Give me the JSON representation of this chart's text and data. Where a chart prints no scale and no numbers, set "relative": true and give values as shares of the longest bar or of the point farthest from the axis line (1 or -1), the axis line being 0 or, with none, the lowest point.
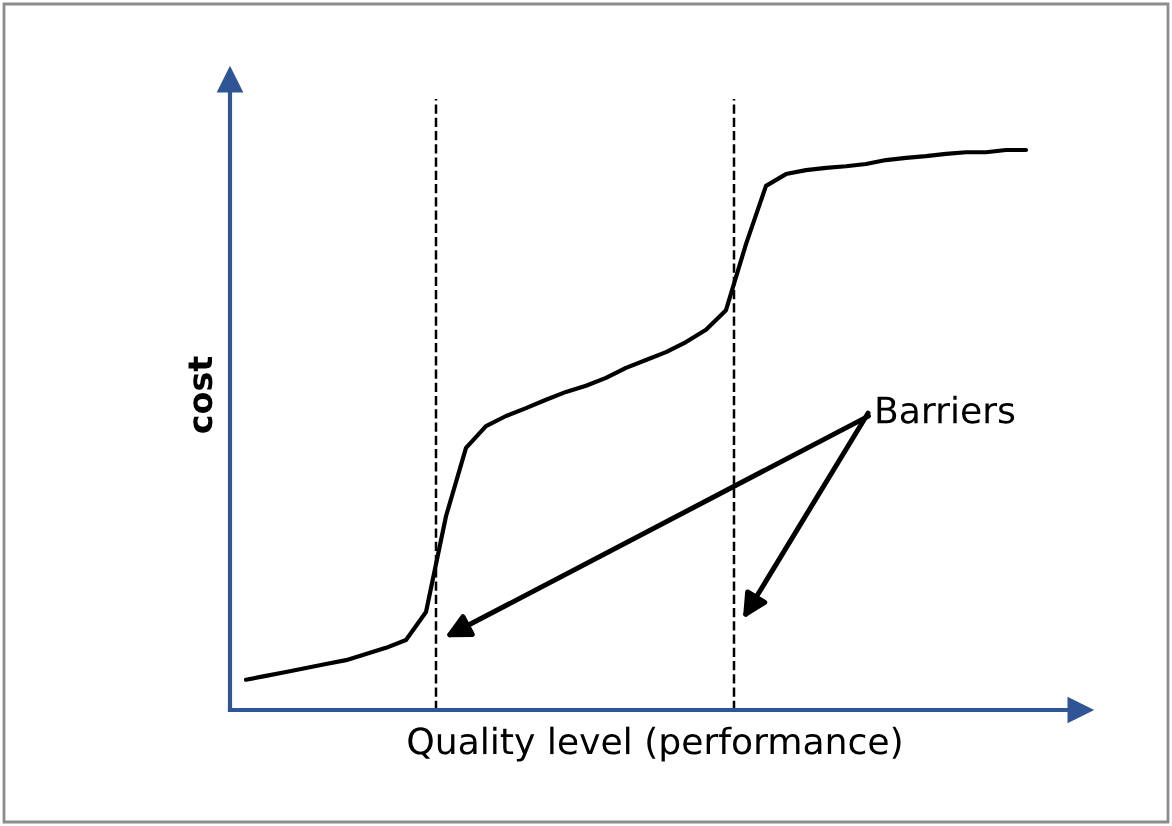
{
  "chart_data": {
    "type": "line",
    "relative": true,
    "xlabel": "Quality level (performance)",
    "ylabel": "cost",
    "categories": [
      null,
      null,
      null,
      null,
      null,
      null,
      null,
      null,
      null,
      null,
      null,
      null,
      null,
      null,
      null,
      null,
      null,
      null,
      null,
      null,
      null,
      null,
      null,
      null,
      null,
      null,
      null,
      null,
      null,
      null,
      null,
      null,
      null,
      null,
      null,
      null,
      null,
      null,
      null,
      null
    ],
    "series": [
      {
        "color": "#000000",
        "values": [
          0.054,
          0.061,
          0.068,
          0.075,
          0.082,
          0.089,
          0.1,
          0.111,
          0.125,
          0.175,
          0.346,
          0.468,
          0.507,
          0.525,
          0.539,
          0.554,
          0.568,
          0.579,
          0.593,
          0.611,
          0.625,
          0.639,
          0.657,
          0.679,
          0.714,
          0.832,
          0.936,
          0.957,
          0.964,
          0.968,
          0.971,
          0.975,
          0.982,
          0.986,
          0.989,
          0.993,
          0.996,
          0.996,
          1,
          1
        ]
      }
    ],
    "annotations": [
      "Barriers"
    ],
    "grid": false,
    "legend": false,
    "tick_labels": false
  }
}
